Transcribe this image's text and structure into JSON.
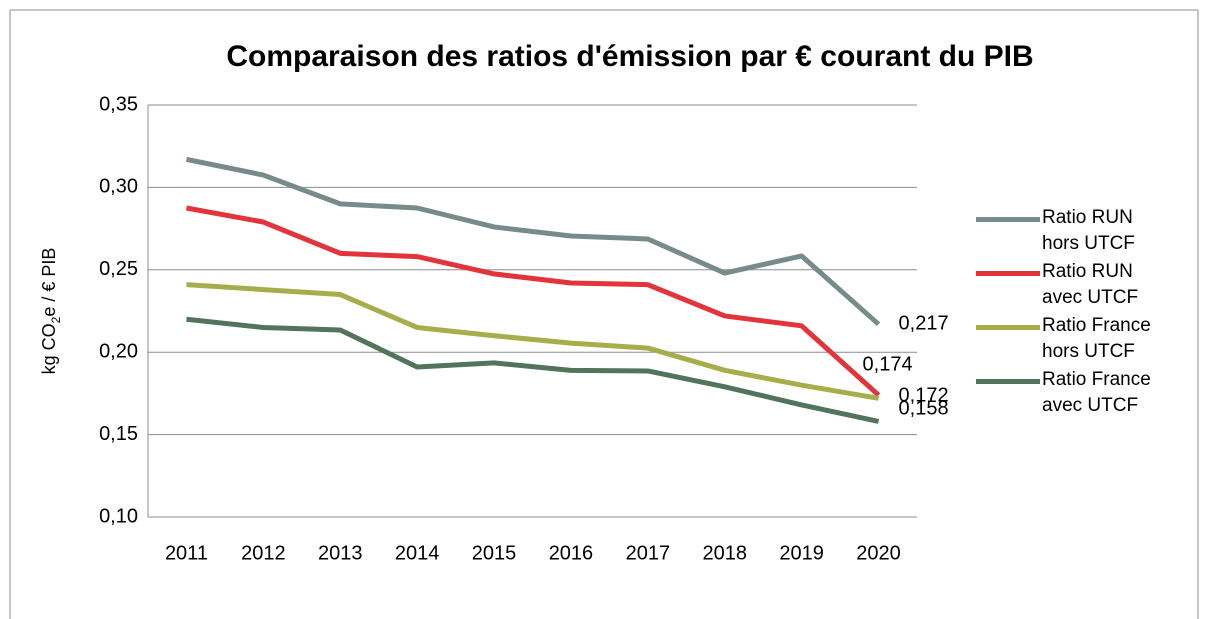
{
  "chart_data": {
    "type": "line",
    "title": "Comparaison des ratios d'émission par € courant du PIB",
    "y_label": [
      "kg CO",
      "2",
      "e / € PIB"
    ],
    "categories": [
      "2011",
      "2012",
      "2013",
      "2014",
      "2015",
      "2016",
      "2017",
      "2018",
      "2019",
      "2020"
    ],
    "ylim": [
      0.1,
      0.35
    ],
    "yticks": [
      {
        "value": 0.1,
        "label": "0,10"
      },
      {
        "value": 0.15,
        "label": "0,15"
      },
      {
        "value": 0.2,
        "label": "0,20"
      },
      {
        "value": 0.25,
        "label": "0,25"
      },
      {
        "value": 0.3,
        "label": "0,30"
      },
      {
        "value": 0.35,
        "label": "0,35"
      }
    ],
    "grid": true,
    "legend": "right",
    "series": [
      {
        "name": "Ratio RUN hors UTCF",
        "color": "#788b8b",
        "values": [
          0.317,
          0.3075,
          0.29,
          0.2875,
          0.276,
          0.2705,
          0.2687,
          0.248,
          0.2584,
          0.217
        ],
        "value_labels": [
          null,
          null,
          null,
          null,
          null,
          null,
          null,
          null,
          null,
          "0,217"
        ]
      },
      {
        "name": "Ratio RUN avec UTCF",
        "color": "#e3343b",
        "values": [
          0.2875,
          0.279,
          0.26,
          0.258,
          0.2475,
          0.242,
          0.241,
          0.222,
          0.216,
          0.174
        ],
        "value_labels": [
          null,
          null,
          null,
          null,
          null,
          null,
          null,
          null,
          null,
          "0,174"
        ]
      },
      {
        "name": "Ratio France hors UTCF",
        "color": "#a8ad4b",
        "values": [
          0.241,
          0.238,
          0.235,
          0.215,
          0.21,
          0.2055,
          0.2025,
          0.189,
          0.18,
          0.172
        ],
        "value_labels": [
          null,
          null,
          null,
          null,
          null,
          null,
          null,
          null,
          null,
          "0,172"
        ]
      },
      {
        "name": "Ratio France avec UTCF",
        "color": "#52745b",
        "values": [
          0.22,
          0.215,
          0.2135,
          0.191,
          0.1935,
          0.189,
          0.1886,
          0.179,
          0.168,
          0.158
        ],
        "value_labels": [
          null,
          null,
          null,
          null,
          null,
          null,
          null,
          null,
          null,
          "0,158"
        ]
      }
    ]
  }
}
